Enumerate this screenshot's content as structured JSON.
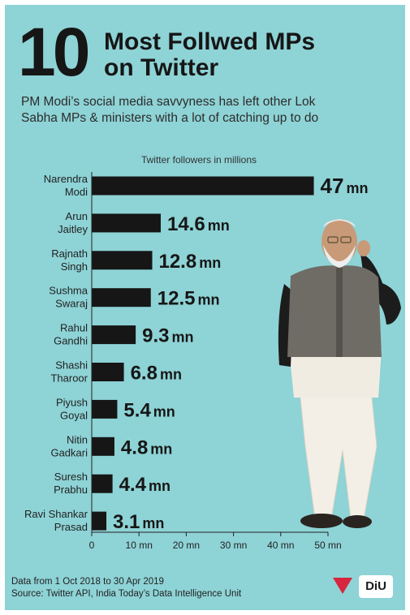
{
  "header": {
    "number": "10",
    "title_line1": "Most Follwed MPs",
    "title_line2": "on Twitter",
    "subtitle_line1": "PM Modi’s social media savvyness has left other Lok",
    "subtitle_line2": "Sabha MPs & ministers with a lot of catching up to do"
  },
  "chart_data": {
    "type": "bar",
    "orientation": "horizontal",
    "title": "Twitter followers in millions",
    "categories": [
      [
        "Narendra",
        "Modi"
      ],
      [
        "Arun",
        "Jaitley"
      ],
      [
        "Rajnath",
        "Singh"
      ],
      [
        "Sushma",
        "Swaraj"
      ],
      [
        "Rahul",
        "Gandhi"
      ],
      [
        "Shashi",
        "Tharoor"
      ],
      [
        "Piyush",
        "Goyal"
      ],
      [
        "Nitin",
        "Gadkari"
      ],
      [
        "Suresh",
        "Prabhu"
      ],
      [
        "Ravi Shankar",
        "Prasad"
      ]
    ],
    "values": [
      47,
      14.6,
      12.8,
      12.5,
      9.3,
      6.8,
      5.4,
      4.8,
      4.4,
      3.1
    ],
    "value_labels": [
      "47",
      "14.6",
      "12.8",
      "12.5",
      "9.3",
      "6.8",
      "5.4",
      "4.8",
      "4.4",
      "3.1"
    ],
    "value_unit": "mn",
    "xlim": [
      0,
      50
    ],
    "xticks": [
      0,
      10,
      20,
      30,
      40,
      50
    ],
    "xtick_labels": [
      "0",
      "10 mn",
      "20 mn",
      "30 mn",
      "40 mn",
      "50 mn"
    ],
    "grid": false,
    "bar_color": "#161616"
  },
  "footer": {
    "line1": "Data from 1 Oct 2018 to 30 Apr 2019",
    "line2": "Source: Twitter API, India Today’s Data Intelligence Unit"
  },
  "logos": {
    "india_today": "INDIA TODAY GROUP",
    "diu": "DIU"
  },
  "colors": {
    "background": "#8ed3d6",
    "text": "#161616"
  }
}
